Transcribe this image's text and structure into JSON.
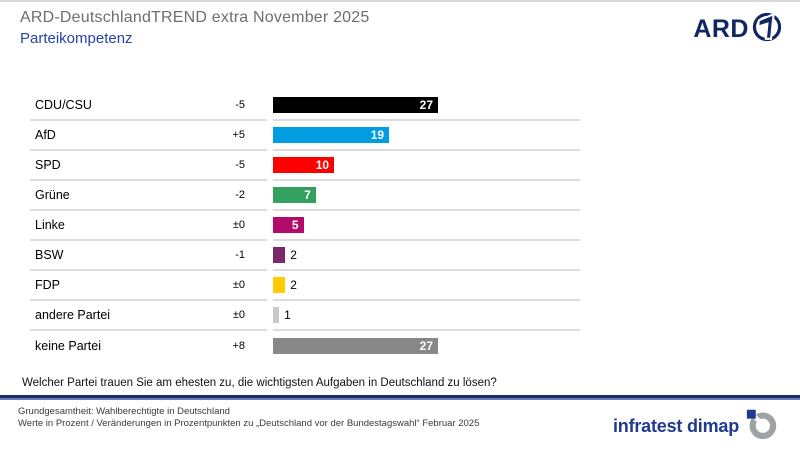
{
  "header": {
    "title": "ARD-DeutschlandTREND extra November 2025",
    "subtitle": "Parteikompetenz",
    "brand": "ARD"
  },
  "chart_data": {
    "type": "bar",
    "orientation": "horizontal",
    "title": "Parteikompetenz",
    "value_unit": "Prozent",
    "xlim": [
      0,
      27
    ],
    "categories": [
      "CDU/CSU",
      "AfD",
      "SPD",
      "Grüne",
      "Linke",
      "BSW",
      "FDP",
      "andere Partei",
      "keine Partei"
    ],
    "values": [
      27,
      19,
      10,
      7,
      5,
      2,
      2,
      1,
      27
    ],
    "changes": [
      "-5",
      "+5",
      "-5",
      "-2",
      "±0",
      "-1",
      "±0",
      "±0",
      "+8"
    ],
    "colors": [
      "#000000",
      "#009ee0",
      "#ff0000",
      "#33a05f",
      "#b40a6a",
      "#7b2869",
      "#ffcc00",
      "#c8c8c8",
      "#878787"
    ],
    "rows": [
      {
        "party": "CDU/CSU",
        "change": "-5",
        "value": 27,
        "color": "#000000"
      },
      {
        "party": "AfD",
        "change": "+5",
        "value": 19,
        "color": "#009ee0"
      },
      {
        "party": "SPD",
        "change": "-5",
        "value": 10,
        "color": "#ff0000"
      },
      {
        "party": "Grüne",
        "change": "-2",
        "value": 7,
        "color": "#33a05f"
      },
      {
        "party": "Linke",
        "change": "±0",
        "value": 5,
        "color": "#b40a6a"
      },
      {
        "party": "BSW",
        "change": "-1",
        "value": 2,
        "color": "#7b2869"
      },
      {
        "party": "FDP",
        "change": "±0",
        "value": 2,
        "color": "#ffcc00"
      },
      {
        "party": "andere Partei",
        "change": "±0",
        "value": 1,
        "color": "#c8c8c8"
      },
      {
        "party": "keine Partei",
        "change": "+8",
        "value": 27,
        "color": "#878787"
      }
    ]
  },
  "question": "Welcher Partei trauen Sie am ehesten zu, die wichtigsten Aufgaben in Deutschland zu lösen?",
  "footer": {
    "line1": "Grundgesamtheit: Wahlberechtigte in Deutschland",
    "line2": "Werte in Prozent / Veränderungen in Prozentpunkten zu „Deutschland vor der Bundestagswahl“ Februar 2025",
    "brand": "infratest dimap"
  },
  "colors": {
    "accent_blue": "#2443ad",
    "brand_navy": "#0f2864",
    "dimap_navy": "#203a8f",
    "separator": "#dcdcdc",
    "title_gray": "#6e6e6e"
  }
}
